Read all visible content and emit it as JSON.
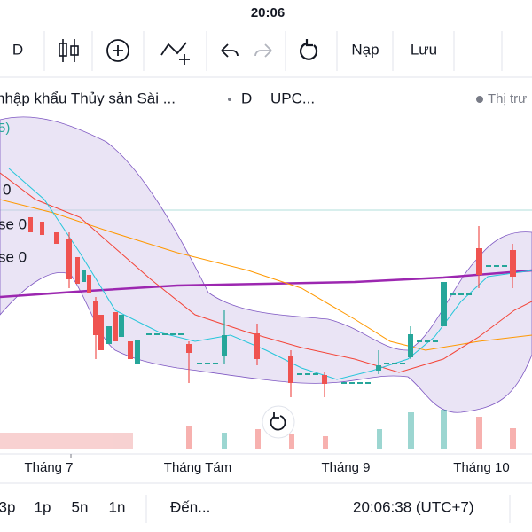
{
  "status_bar": {
    "time": "20:06"
  },
  "toolbar": {
    "interval": "D",
    "load": "Nạp",
    "save": "Lưu"
  },
  "legend": {
    "symbol_name": "nhập khẩu Thủy sản Sài ...",
    "interval": "D",
    "ticker": "UPC...",
    "market": "Thị trư",
    "indicators": [
      "5)",
      "0",
      "se 0",
      "se 0"
    ]
  },
  "x_axis": {
    "labels": [
      "Tháng 7",
      "Tháng Tám",
      "Tháng 9",
      "Tháng 10"
    ]
  },
  "bottom_bar": {
    "ranges": [
      "3p",
      "1p",
      "5n",
      "1n"
    ],
    "goto": "Đến...",
    "clock": "20:06:38 (UTC+7)"
  }
}
